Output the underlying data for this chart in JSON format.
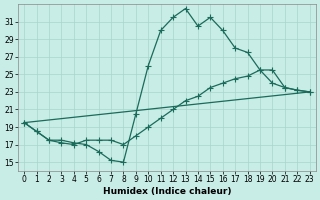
{
  "xlabel": "Humidex (Indice chaleur)",
  "background_color": "#c8ece6",
  "grid_color": "#a8d4cc",
  "line_color": "#1a6b5a",
  "ylim": [
    14.0,
    33.0
  ],
  "xlim": [
    -0.5,
    23.5
  ],
  "yticks": [
    15,
    17,
    19,
    21,
    23,
    25,
    27,
    29,
    31
  ],
  "xticks": [
    0,
    1,
    2,
    3,
    4,
    5,
    6,
    7,
    8,
    9,
    10,
    11,
    12,
    13,
    14,
    15,
    16,
    17,
    18,
    19,
    20,
    21,
    22,
    23
  ],
  "line1_x": [
    0,
    1,
    2,
    3,
    4,
    5,
    6,
    7,
    8,
    9,
    10,
    11,
    12,
    13,
    14,
    15,
    16,
    17,
    18,
    19,
    20,
    21,
    22,
    23
  ],
  "line1_y": [
    19.5,
    18.5,
    17.5,
    17.5,
    17.2,
    17.0,
    16.2,
    15.2,
    15.0,
    20.5,
    26.0,
    30.0,
    31.5,
    32.5,
    30.5,
    31.5,
    30.0,
    28.0,
    27.5,
    25.5,
    24.0,
    23.5,
    23.2,
    23.0
  ],
  "line2_x": [
    0,
    1,
    2,
    3,
    4,
    5,
    6,
    7,
    8,
    9,
    10,
    11,
    12,
    13,
    14,
    15,
    16,
    17,
    18,
    19,
    20,
    21,
    22,
    23
  ],
  "line2_y": [
    19.5,
    18.5,
    17.5,
    17.2,
    17.0,
    17.5,
    17.5,
    17.5,
    17.0,
    18.0,
    19.0,
    20.0,
    21.0,
    22.0,
    22.5,
    23.5,
    24.0,
    24.5,
    24.8,
    25.5,
    25.5,
    23.5,
    23.2,
    23.0
  ],
  "line3_x": [
    0,
    23
  ],
  "line3_y": [
    19.5,
    23.0
  ],
  "marker": "+",
  "marker_size": 4,
  "linewidth": 0.9,
  "tick_fontsize": 5.5,
  "xlabel_fontsize": 6.5
}
